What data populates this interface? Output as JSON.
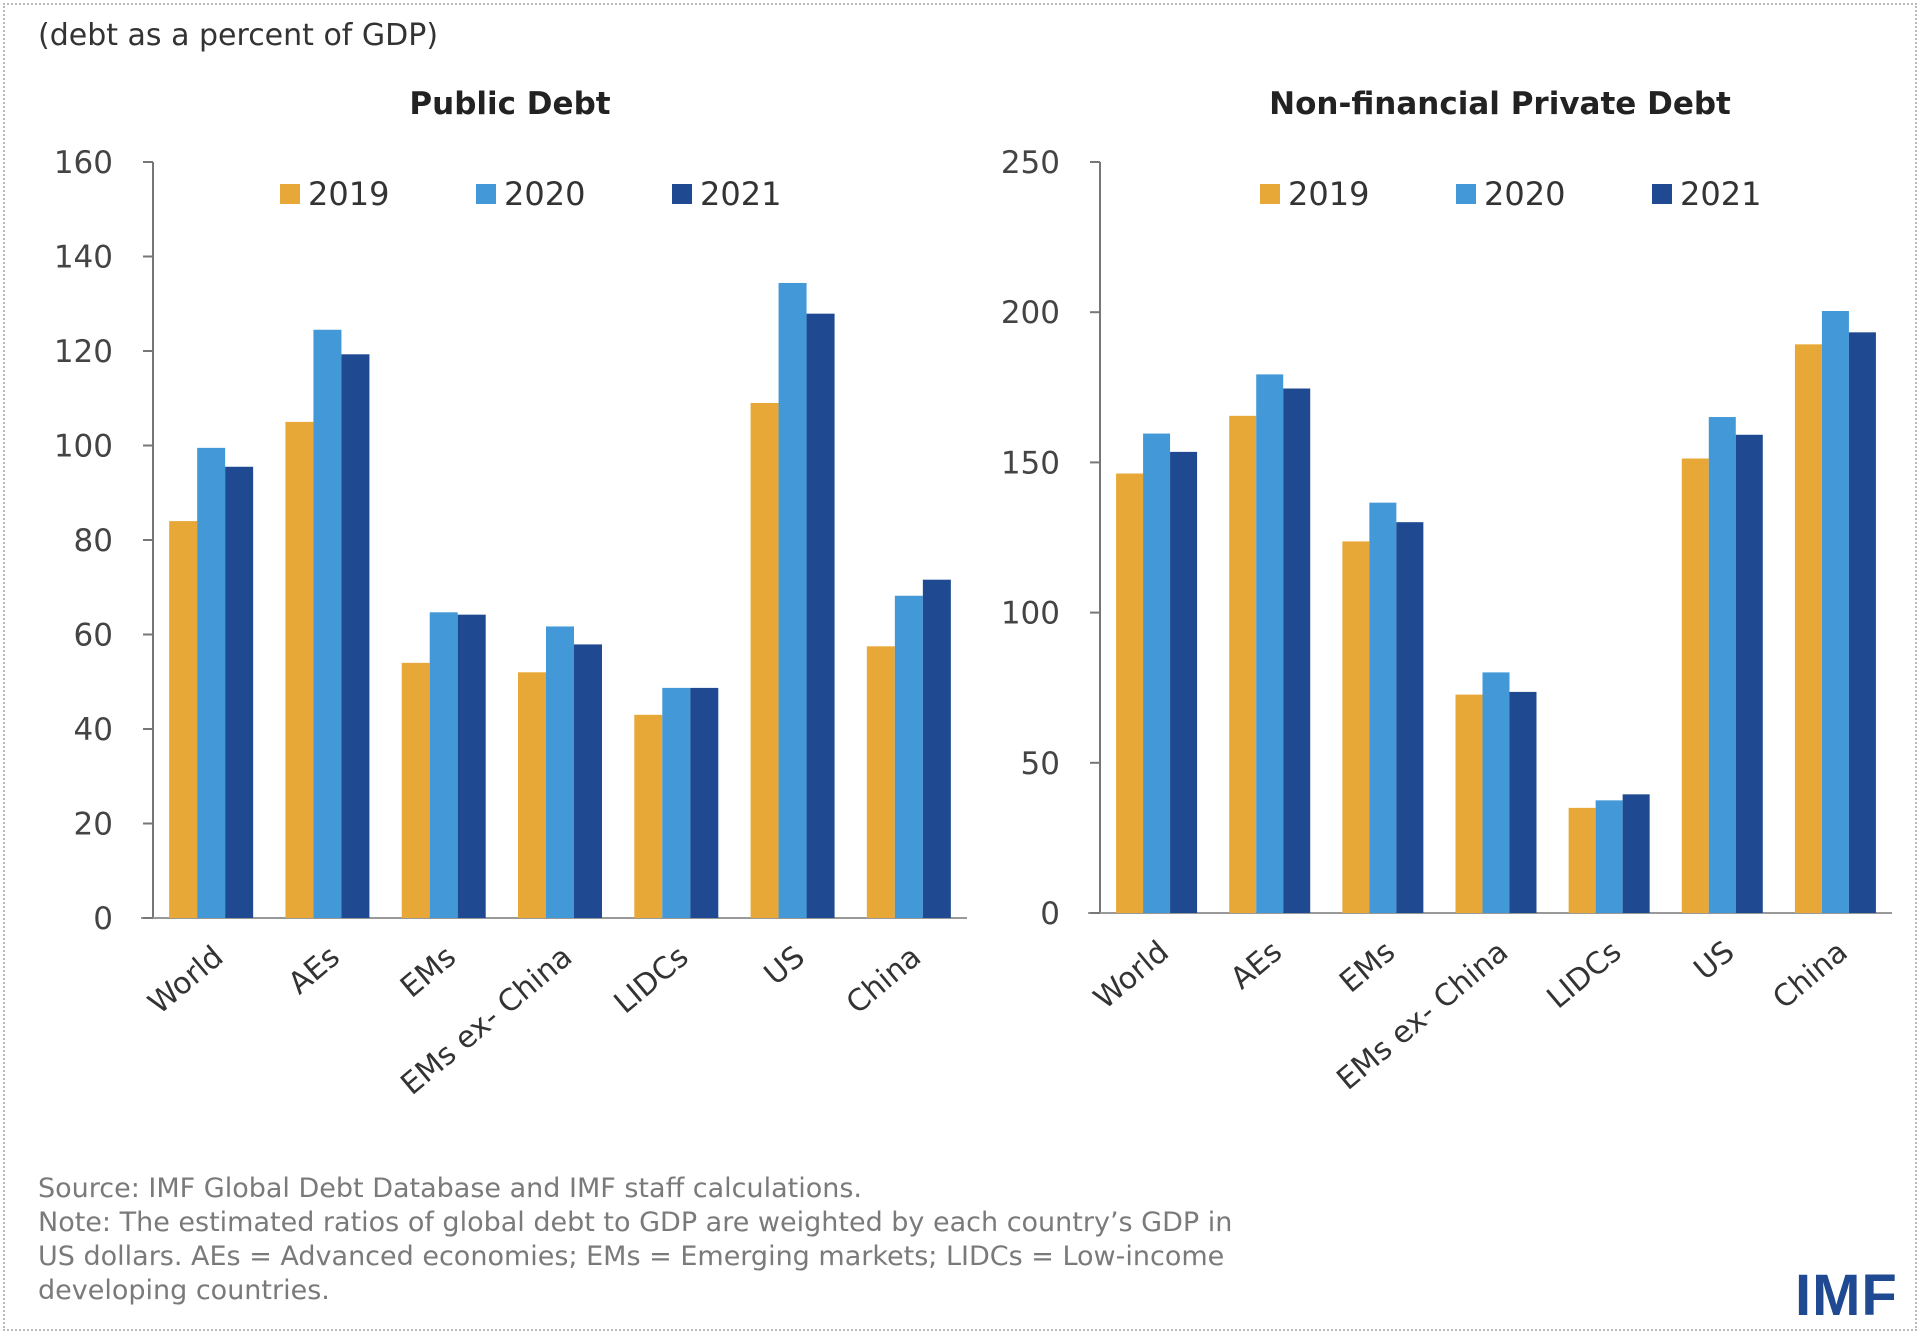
{
  "subtitle": "(debt as a percent of GDP)",
  "colors": {
    "2019": "#E8A838",
    "2020": "#4398D8",
    "2021": "#1F4A91"
  },
  "chart_data": [
    {
      "type": "bar",
      "title": "Public Debt",
      "categories": [
        "World",
        "AEs",
        "EMs",
        "EMs ex- China",
        "LIDCs",
        "US",
        "China"
      ],
      "series": [
        {
          "name": "2019",
          "values": [
            84,
            105,
            54,
            52,
            43,
            109,
            57.5
          ]
        },
        {
          "name": "2020",
          "values": [
            99.5,
            124.5,
            64.7,
            61.7,
            48.7,
            134.4,
            68.2
          ]
        },
        {
          "name": "2021",
          "values": [
            95.5,
            119.3,
            64.2,
            57.9,
            48.7,
            127.9,
            71.6
          ]
        }
      ],
      "ylim": [
        0,
        160
      ],
      "yticks": [
        0,
        20,
        40,
        60,
        80,
        100,
        120,
        140,
        160
      ],
      "grid": false,
      "legend": "top"
    },
    {
      "type": "bar",
      "title": "Non-financial Private Debt",
      "categories": [
        "World",
        "AEs",
        "EMs",
        "EMs ex- China",
        "LIDCs",
        "US",
        "China"
      ],
      "series": [
        {
          "name": "2019",
          "values": [
            146.3,
            165.5,
            123.7,
            72.7,
            35,
            151.3,
            189.3
          ]
        },
        {
          "name": "2020",
          "values": [
            159.6,
            179.3,
            136.6,
            80.1,
            37.5,
            165.1,
            200.4
          ]
        },
        {
          "name": "2021",
          "values": [
            153.5,
            174.6,
            130.1,
            73.6,
            39.5,
            159.2,
            193.3
          ]
        }
      ],
      "ylim": [
        0,
        250
      ],
      "yticks": [
        0,
        50,
        100,
        150,
        200,
        250
      ],
      "grid": false,
      "legend": "top"
    }
  ],
  "footer": {
    "source": "Source: IMF Global Debt Database and IMF staff calculations.",
    "note_lines": [
      "Note: The estimated ratios of global debt to GDP are weighted by each country’s GDP in",
      "US dollars. AEs = Advanced economies; EMs = Emerging markets; LIDCs = Low-income",
      "developing countries."
    ]
  },
  "logo": "IMF"
}
